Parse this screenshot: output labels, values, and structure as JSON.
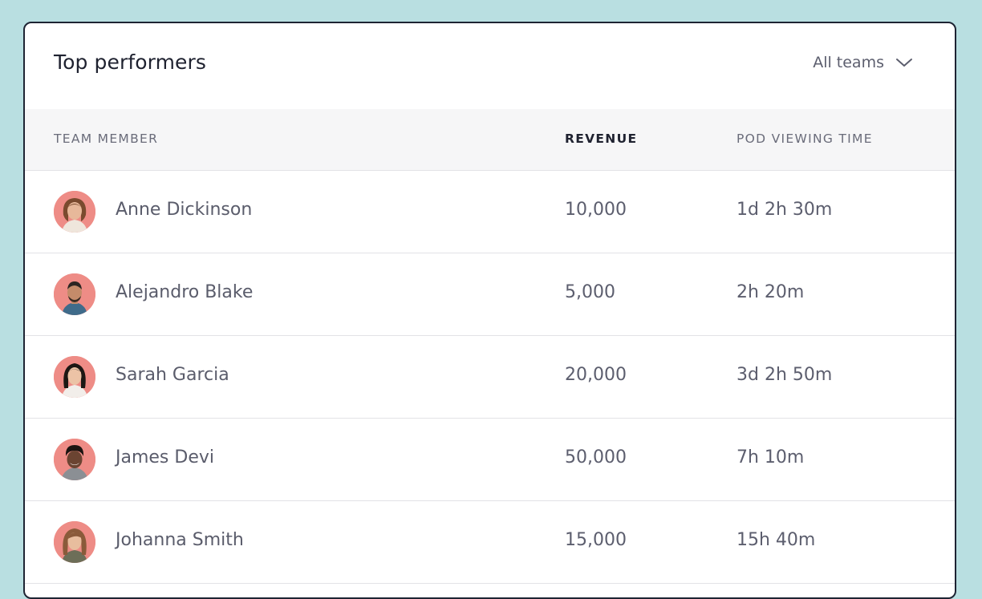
{
  "card": {
    "title": "Top performers",
    "filter": {
      "selected": "All teams",
      "icon": "chevron-down-icon"
    }
  },
  "table": {
    "headers": {
      "member": "TEAM MEMBER",
      "revenue": "REVENUE",
      "time": "POD VIEWING TIME"
    },
    "rows": [
      {
        "name": "Anne Dickinson",
        "revenue": "10,000",
        "time": "1d 2h 30m"
      },
      {
        "name": "Alejandro Blake",
        "revenue": "5,000",
        "time": "2h 20m"
      },
      {
        "name": "Sarah Garcia",
        "revenue": "20,000",
        "time": "3d 2h 50m"
      },
      {
        "name": "James Devi",
        "revenue": "50,000",
        "time": "7h 10m"
      },
      {
        "name": "Johanna Smith",
        "revenue": "15,000",
        "time": "15h 40m"
      }
    ]
  },
  "colors": {
    "background": "#b9dfe1",
    "avatar_bg": "#ee8c86",
    "text_primary": "#1f2230",
    "text_secondary": "#5c5e6e"
  }
}
